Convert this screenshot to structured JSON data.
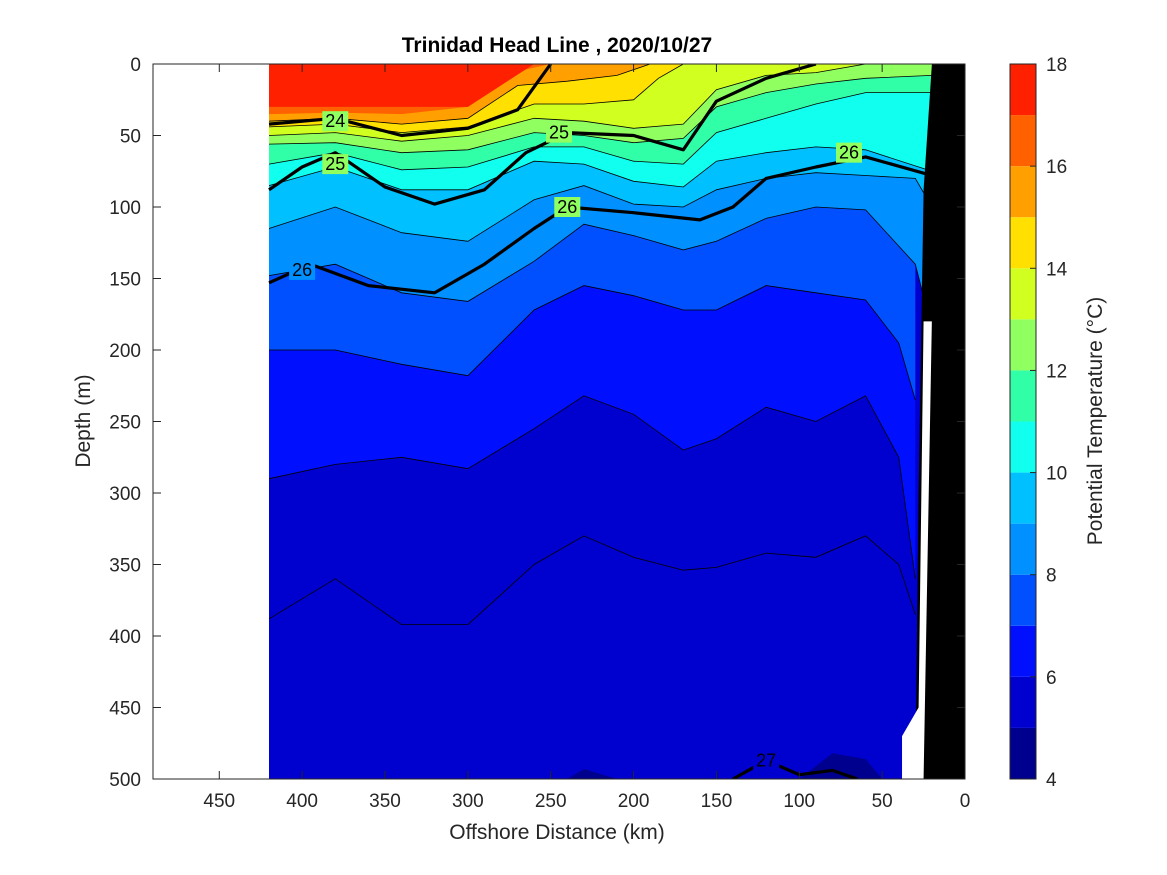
{
  "chart_data": {
    "type": "heatmap",
    "title": "Trinidad Head Line , 2020/10/27",
    "xlabel": "Offshore Distance (km)",
    "ylabel": "Depth (m)",
    "xlim": [
      490,
      0
    ],
    "ylim": [
      500,
      0
    ],
    "x_reversed": true,
    "y_reversed": true,
    "x_ticks": [
      450,
      400,
      350,
      300,
      250,
      200,
      150,
      100,
      50,
      0
    ],
    "x_tick_labels": [
      "450",
      "400",
      "350",
      "300",
      "250",
      "200",
      "150",
      "100",
      "50",
      "0"
    ],
    "y_ticks": [
      0,
      50,
      100,
      150,
      200,
      250,
      300,
      350,
      400,
      450,
      500
    ],
    "y_tick_labels": [
      "0",
      "50",
      "100",
      "150",
      "200",
      "250",
      "300",
      "350",
      "400",
      "450",
      "500"
    ],
    "colorbar": {
      "label": "Potential Temperature (°C)",
      "range": [
        4,
        18
      ],
      "ticks": [
        4,
        6,
        8,
        10,
        12,
        14,
        16,
        18
      ],
      "tick_labels": [
        "4",
        "6",
        "8",
        "10",
        "12",
        "14",
        "16",
        "18"
      ],
      "levels": [
        4,
        5,
        6,
        7,
        8,
        9,
        10,
        11,
        12,
        13,
        14,
        15,
        16,
        17,
        18
      ],
      "colors": [
        "#00008f",
        "#0000cf",
        "#0010ff",
        "#0050ff",
        "#0090ff",
        "#00c0ff",
        "#10ffef",
        "#30ffa8",
        "#90ff60",
        "#d0ff20",
        "#ffe000",
        "#ffa000",
        "#ff6000",
        "#ff2000",
        "#c00000"
      ]
    },
    "data_extent_km": [
      420,
      20
    ],
    "temperature_boundaries": [
      {
        "T": 17,
        "depth_m": [
          [
            420,
            30
          ],
          [
            380,
            30
          ],
          [
            340,
            30
          ],
          [
            300,
            30
          ],
          [
            260,
            0
          ]
        ]
      },
      {
        "T": 16,
        "depth_m": [
          [
            420,
            35
          ],
          [
            380,
            34
          ],
          [
            340,
            35
          ],
          [
            300,
            30
          ],
          [
            270,
            5
          ],
          [
            250,
            0
          ]
        ]
      },
      {
        "T": 15,
        "depth_m": [
          [
            420,
            40
          ],
          [
            380,
            38
          ],
          [
            340,
            42
          ],
          [
            300,
            38
          ],
          [
            270,
            15
          ],
          [
            240,
            12
          ],
          [
            210,
            8
          ],
          [
            190,
            0
          ]
        ]
      },
      {
        "T": 14,
        "depth_m": [
          [
            420,
            44
          ],
          [
            380,
            42
          ],
          [
            340,
            48
          ],
          [
            300,
            44
          ],
          [
            260,
            28
          ],
          [
            230,
            28
          ],
          [
            200,
            25
          ],
          [
            185,
            10
          ],
          [
            170,
            0
          ]
        ]
      },
      {
        "T": 13,
        "depth_m": [
          [
            420,
            50
          ],
          [
            380,
            48
          ],
          [
            340,
            54
          ],
          [
            300,
            50
          ],
          [
            260,
            38
          ],
          [
            230,
            40
          ],
          [
            200,
            45
          ],
          [
            170,
            42
          ],
          [
            150,
            18
          ],
          [
            120,
            8
          ],
          [
            90,
            6
          ],
          [
            60,
            0
          ]
        ]
      },
      {
        "T": 12,
        "depth_m": [
          [
            420,
            56
          ],
          [
            380,
            55
          ],
          [
            340,
            62
          ],
          [
            300,
            60
          ],
          [
            260,
            48
          ],
          [
            230,
            50
          ],
          [
            200,
            55
          ],
          [
            170,
            52
          ],
          [
            150,
            30
          ],
          [
            120,
            20
          ],
          [
            90,
            14
          ],
          [
            60,
            10
          ],
          [
            20,
            8
          ]
        ]
      },
      {
        "T": 11,
        "depth_m": [
          [
            420,
            70
          ],
          [
            380,
            62
          ],
          [
            340,
            74
          ],
          [
            300,
            72
          ],
          [
            260,
            58
          ],
          [
            230,
            58
          ],
          [
            200,
            68
          ],
          [
            170,
            70
          ],
          [
            150,
            48
          ],
          [
            120,
            38
          ],
          [
            90,
            28
          ],
          [
            60,
            20
          ],
          [
            20,
            20
          ]
        ]
      },
      {
        "T": 10,
        "depth_m": [
          [
            420,
            85
          ],
          [
            380,
            72
          ],
          [
            340,
            88
          ],
          [
            300,
            88
          ],
          [
            260,
            68
          ],
          [
            230,
            70
          ],
          [
            200,
            82
          ],
          [
            170,
            86
          ],
          [
            150,
            68
          ],
          [
            120,
            62
          ],
          [
            90,
            58
          ],
          [
            60,
            60
          ],
          [
            20,
            75
          ]
        ]
      },
      {
        "T": 9,
        "depth_m": [
          [
            420,
            115
          ],
          [
            380,
            100
          ],
          [
            340,
            118
          ],
          [
            300,
            124
          ],
          [
            260,
            95
          ],
          [
            230,
            85
          ],
          [
            200,
            98
          ],
          [
            170,
            100
          ],
          [
            150,
            88
          ],
          [
            120,
            80
          ],
          [
            90,
            76
          ],
          [
            60,
            78
          ],
          [
            30,
            80
          ],
          [
            20,
            100
          ]
        ]
      },
      {
        "T": 8,
        "depth_m": [
          [
            420,
            148
          ],
          [
            380,
            140
          ],
          [
            340,
            160
          ],
          [
            300,
            166
          ],
          [
            260,
            138
          ],
          [
            230,
            112
          ],
          [
            200,
            120
          ],
          [
            170,
            130
          ],
          [
            150,
            124
          ],
          [
            120,
            108
          ],
          [
            90,
            100
          ],
          [
            60,
            102
          ],
          [
            30,
            140
          ],
          [
            20,
            185
          ]
        ]
      },
      {
        "T": 7,
        "depth_m": [
          [
            420,
            200
          ],
          [
            380,
            200
          ],
          [
            340,
            210
          ],
          [
            300,
            218
          ],
          [
            260,
            172
          ],
          [
            230,
            155
          ],
          [
            200,
            162
          ],
          [
            170,
            172
          ],
          [
            150,
            172
          ],
          [
            120,
            155
          ],
          [
            90,
            160
          ],
          [
            60,
            165
          ],
          [
            40,
            195
          ],
          [
            30,
            235
          ]
        ]
      },
      {
        "T": 6,
        "depth_m": [
          [
            420,
            290
          ],
          [
            380,
            280
          ],
          [
            340,
            275
          ],
          [
            300,
            283
          ],
          [
            260,
            255
          ],
          [
            230,
            232
          ],
          [
            200,
            245
          ],
          [
            170,
            270
          ],
          [
            150,
            262
          ],
          [
            120,
            240
          ],
          [
            90,
            250
          ],
          [
            60,
            232
          ],
          [
            40,
            275
          ],
          [
            30,
            360
          ]
        ]
      },
      {
        "T": 5,
        "depth_m": [
          [
            420,
            388
          ],
          [
            380,
            360
          ],
          [
            340,
            392
          ],
          [
            300,
            392
          ],
          [
            260,
            350
          ],
          [
            230,
            330
          ],
          [
            200,
            345
          ],
          [
            170,
            354
          ],
          [
            150,
            352
          ],
          [
            120,
            342
          ],
          [
            90,
            345
          ],
          [
            60,
            330
          ],
          [
            40,
            350
          ],
          [
            30,
            385
          ]
        ]
      },
      {
        "T": 4,
        "depth_m": [
          [
            240,
            500
          ],
          [
            230,
            493
          ],
          [
            210,
            500
          ],
          [
            100,
            500
          ],
          [
            80,
            482
          ],
          [
            60,
            486
          ],
          [
            50,
            500
          ]
        ]
      }
    ],
    "density_contours": [
      {
        "label": "24",
        "depth_m": [
          [
            420,
            42
          ],
          [
            380,
            38
          ],
          [
            340,
            50
          ],
          [
            300,
            45
          ],
          [
            270,
            32
          ],
          [
            250,
            0
          ]
        ]
      },
      {
        "label": "25",
        "depth_m": [
          [
            420,
            88
          ],
          [
            400,
            72
          ],
          [
            380,
            62
          ],
          [
            350,
            86
          ],
          [
            320,
            98
          ],
          [
            290,
            88
          ],
          [
            265,
            62
          ],
          [
            240,
            48
          ],
          [
            200,
            50
          ],
          [
            170,
            60
          ],
          [
            150,
            26
          ],
          [
            120,
            10
          ],
          [
            90,
            0
          ]
        ]
      },
      {
        "label": "26",
        "depth_m": [
          [
            420,
            153
          ],
          [
            395,
            140
          ],
          [
            360,
            155
          ],
          [
            320,
            160
          ],
          [
            290,
            140
          ],
          [
            260,
            115
          ],
          [
            240,
            100
          ],
          [
            200,
            104
          ],
          [
            160,
            109
          ],
          [
            140,
            100
          ],
          [
            120,
            80
          ],
          [
            90,
            72
          ],
          [
            60,
            65
          ],
          [
            20,
            78
          ]
        ]
      },
      {
        "label": "27",
        "depth_m": [
          [
            140,
            500
          ],
          [
            120,
            487
          ],
          [
            100,
            497
          ],
          [
            80,
            494
          ],
          [
            65,
            500
          ]
        ]
      }
    ],
    "bathymetry_km_depth": [
      [
        20,
        0
      ],
      [
        25,
        88
      ],
      [
        28,
        300
      ],
      [
        30,
        500
      ],
      [
        0,
        500
      ],
      [
        0,
        0
      ]
    ],
    "grid": false,
    "legend_placement": "none"
  }
}
